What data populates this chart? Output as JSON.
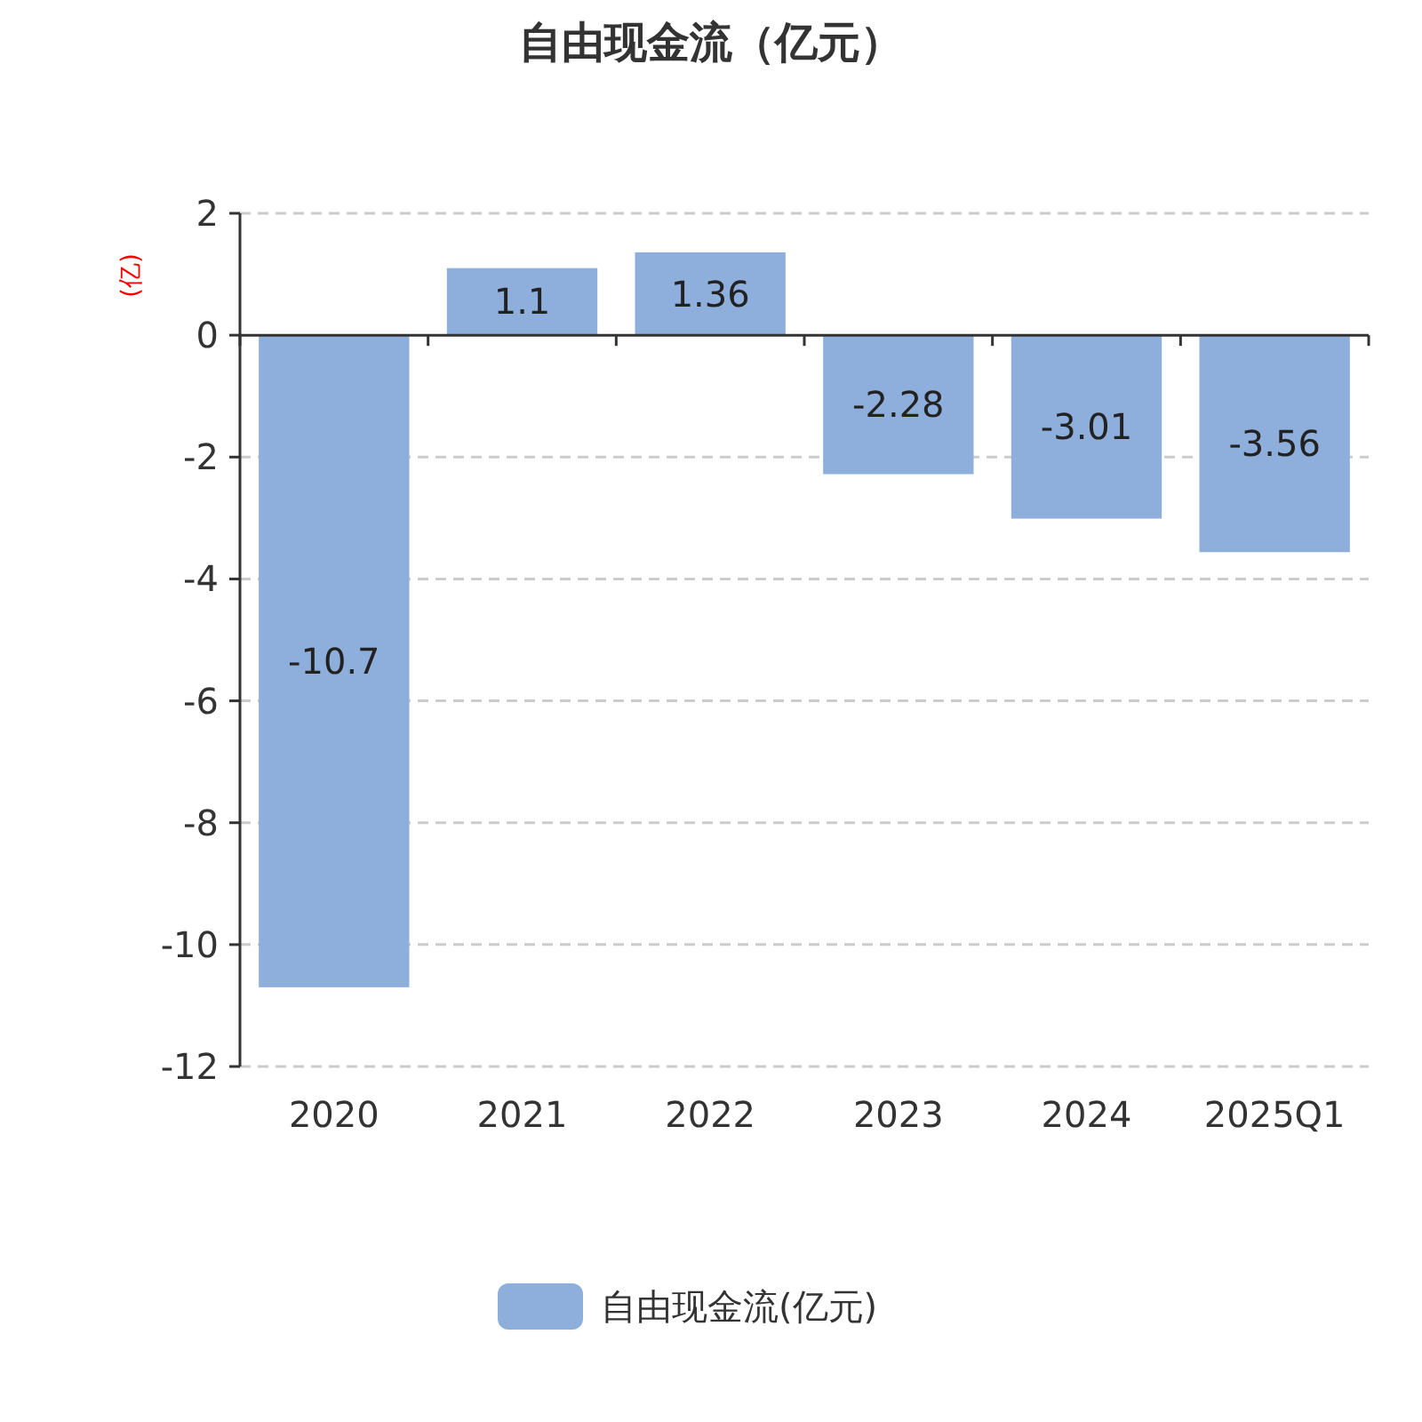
{
  "chart_data": {
    "type": "bar",
    "title": "自由现金流（亿元）",
    "ylabel": "(亿)",
    "categories": [
      "2020",
      "2021",
      "2022",
      "2023",
      "2024",
      "2025Q1"
    ],
    "series": [
      {
        "name": "自由现金流(亿元)",
        "color": "#8eaedb",
        "values": [
          -10.7,
          1.1,
          1.36,
          -2.28,
          -3.01,
          -3.56
        ]
      }
    ],
    "ylim": [
      -12,
      2
    ],
    "yticks": [
      -12,
      -10,
      -8,
      -6,
      -4,
      -2,
      0,
      2
    ],
    "grid": "y",
    "legend": "bottom",
    "data_labels": true
  }
}
